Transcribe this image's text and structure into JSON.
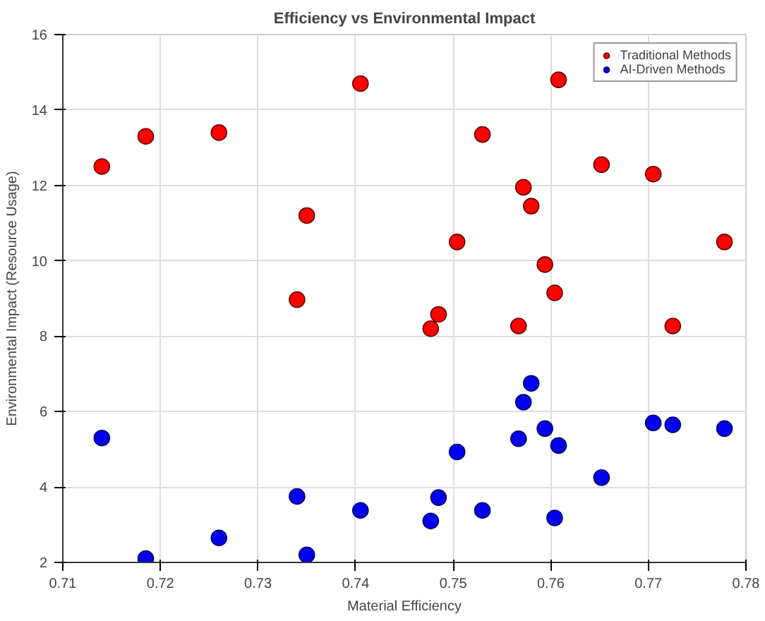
{
  "chart_data": {
    "type": "scatter",
    "title": "Efficiency vs Environmental Impact",
    "xlabel": "Material Efficiency",
    "ylabel": "Environmental Impact (Resource Usage)",
    "xlim": [
      0.71,
      0.78
    ],
    "xticks": [
      0.71,
      0.72,
      0.73,
      0.74,
      0.75,
      0.76,
      0.77,
      0.78
    ],
    "ylim": [
      2,
      16
    ],
    "yticks": [
      2,
      4,
      6,
      8,
      10,
      12,
      14,
      16
    ],
    "grid": true,
    "legend": "top right",
    "marker": "circle",
    "series": [
      {
        "name": "Traditional Methods",
        "color": "#ff0000",
        "x": [
          0.714,
          0.7185,
          0.726,
          0.7405,
          0.735,
          0.734,
          0.753,
          0.7608,
          0.7652,
          0.7705,
          0.7572,
          0.758,
          0.7504,
          0.7594,
          0.7604,
          0.7778,
          0.7485,
          0.7477,
          0.7567,
          0.7725
        ],
        "values": [
          12.5,
          13.3,
          13.4,
          14.7,
          11.2,
          8.97,
          13.35,
          14.8,
          12.55,
          12.3,
          11.95,
          11.45,
          10.5,
          9.9,
          9.15,
          10.5,
          8.58,
          8.2,
          8.27,
          8.27
        ]
      },
      {
        "name": "AI-Driven Methods",
        "color": "#0000ee",
        "x": [
          0.714,
          0.7185,
          0.726,
          0.7405,
          0.734,
          0.735,
          0.7477,
          0.7485,
          0.7504,
          0.753,
          0.7567,
          0.7572,
          0.758,
          0.7594,
          0.7608,
          0.7604,
          0.7652,
          0.7705,
          0.7725,
          0.7778
        ],
        "values": [
          5.3,
          2.1,
          2.65,
          3.38,
          3.75,
          2.2,
          3.1,
          3.72,
          4.93,
          3.38,
          5.28,
          6.25,
          6.75,
          5.55,
          5.1,
          3.18,
          4.25,
          5.7,
          5.65,
          5.55
        ]
      }
    ]
  }
}
